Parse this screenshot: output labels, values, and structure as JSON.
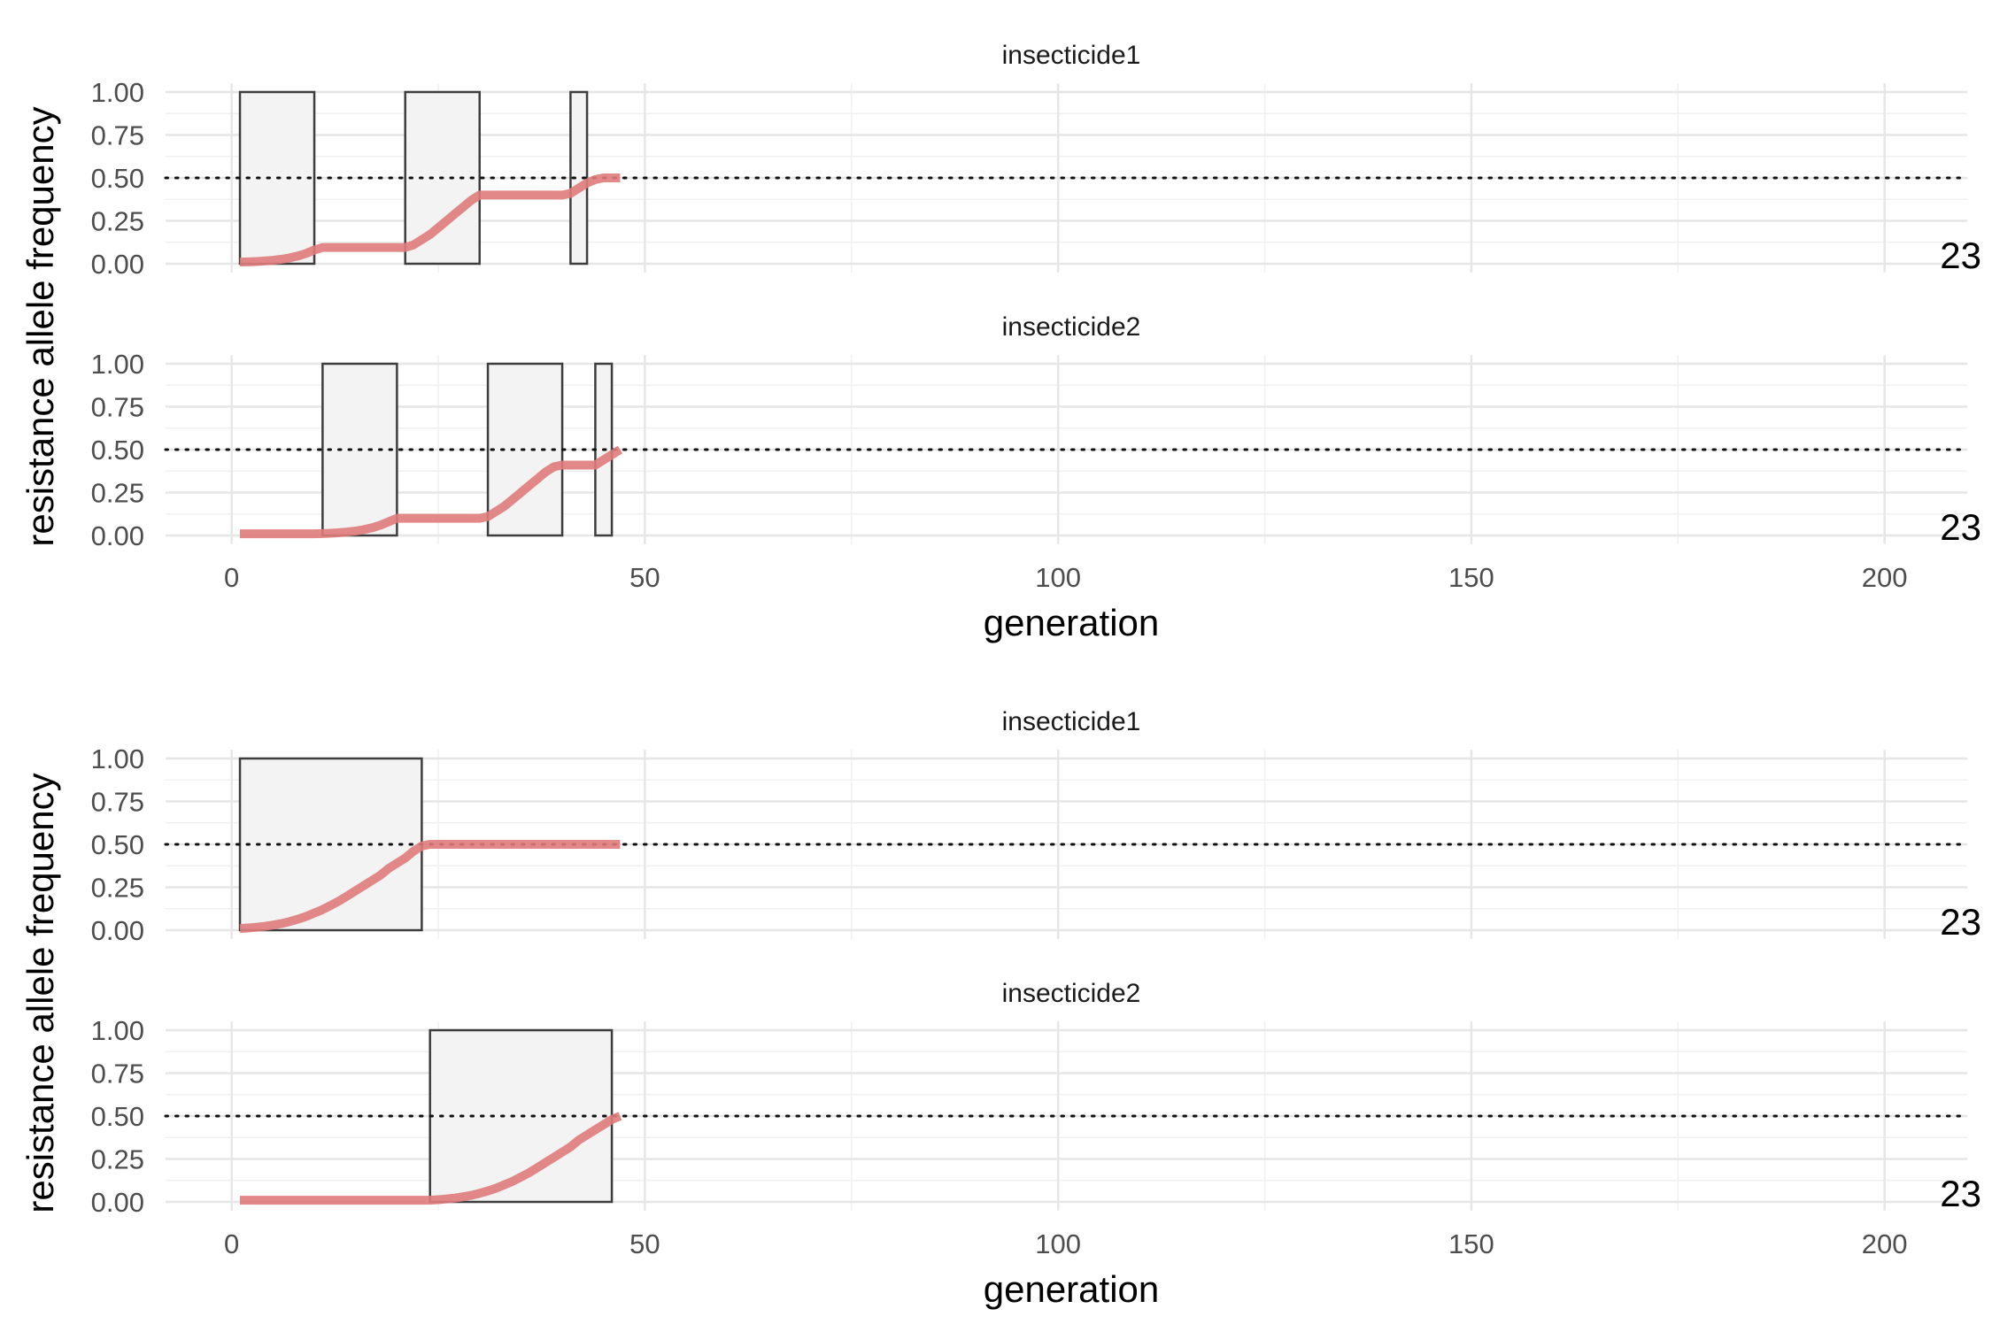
{
  "chart_data": [
    {
      "type": "line",
      "xlabel": "generation",
      "ylabel": "resistance allele frequency",
      "xlim": [
        -8,
        210
      ],
      "ylim": [
        0,
        1
      ],
      "x_ticks": [
        0,
        50,
        100,
        150,
        200
      ],
      "x_tick_labels": [
        "0",
        "50",
        "100",
        "150",
        "200"
      ],
      "y_ticks": [
        0,
        0.25,
        0.5,
        0.75,
        1
      ],
      "y_tick_labels": [
        "0.00",
        "0.25",
        "0.50",
        "0.75",
        "1.00"
      ],
      "threshold": 0.5,
      "grid": true,
      "line_color": "#e07b7b",
      "panels": [
        {
          "title": "insecticide1",
          "corner_label": "23",
          "deployment_intervals": [
            [
              1,
              10
            ],
            [
              21,
              30
            ],
            [
              41,
              43
            ]
          ],
          "series": {
            "x": [
              1,
              2,
              3,
              4,
              5,
              6,
              7,
              8,
              9,
              10,
              11,
              12,
              13,
              14,
              15,
              16,
              17,
              18,
              19,
              20,
              21,
              22,
              23,
              24,
              25,
              26,
              27,
              28,
              29,
              30,
              31,
              32,
              33,
              34,
              35,
              36,
              37,
              38,
              39,
              40,
              41,
              42,
              43,
              44,
              45,
              46,
              47
            ],
            "values": [
              0.01,
              0.011,
              0.013,
              0.016,
              0.02,
              0.026,
              0.034,
              0.045,
              0.06,
              0.08,
              0.095,
              0.095,
              0.095,
              0.095,
              0.095,
              0.095,
              0.095,
              0.095,
              0.095,
              0.095,
              0.095,
              0.11,
              0.14,
              0.17,
              0.21,
              0.25,
              0.29,
              0.33,
              0.37,
              0.4,
              0.4,
              0.4,
              0.4,
              0.4,
              0.4,
              0.4,
              0.4,
              0.4,
              0.4,
              0.4,
              0.41,
              0.44,
              0.47,
              0.49,
              0.5,
              0.5,
              0.5
            ]
          }
        },
        {
          "title": "insecticide2",
          "corner_label": "23",
          "deployment_intervals": [
            [
              11,
              20
            ],
            [
              31,
              40
            ],
            [
              44,
              46
            ]
          ],
          "series": {
            "x": [
              1,
              2,
              3,
              4,
              5,
              6,
              7,
              8,
              9,
              10,
              11,
              12,
              13,
              14,
              15,
              16,
              17,
              18,
              19,
              20,
              21,
              22,
              23,
              24,
              25,
              26,
              27,
              28,
              29,
              30,
              31,
              32,
              33,
              34,
              35,
              36,
              37,
              38,
              39,
              40,
              41,
              42,
              43,
              44,
              45,
              46,
              47
            ],
            "values": [
              0.01,
              0.01,
              0.01,
              0.01,
              0.01,
              0.01,
              0.01,
              0.01,
              0.01,
              0.01,
              0.011,
              0.013,
              0.016,
              0.02,
              0.026,
              0.034,
              0.045,
              0.06,
              0.08,
              0.1,
              0.1,
              0.1,
              0.1,
              0.1,
              0.1,
              0.1,
              0.1,
              0.1,
              0.1,
              0.1,
              0.11,
              0.14,
              0.17,
              0.21,
              0.25,
              0.29,
              0.33,
              0.37,
              0.4,
              0.41,
              0.41,
              0.41,
              0.41,
              0.41,
              0.44,
              0.47,
              0.5
            ]
          }
        }
      ]
    },
    {
      "type": "line",
      "xlabel": "generation",
      "ylabel": "resistance allele frequency",
      "xlim": [
        -8,
        210
      ],
      "ylim": [
        0,
        1
      ],
      "x_ticks": [
        0,
        50,
        100,
        150,
        200
      ],
      "x_tick_labels": [
        "0",
        "50",
        "100",
        "150",
        "200"
      ],
      "y_ticks": [
        0,
        0.25,
        0.5,
        0.75,
        1
      ],
      "y_tick_labels": [
        "0.00",
        "0.25",
        "0.50",
        "0.75",
        "1.00"
      ],
      "threshold": 0.5,
      "grid": true,
      "line_color": "#e07b7b",
      "panels": [
        {
          "title": "insecticide1",
          "corner_label": "23",
          "deployment_intervals": [
            [
              1,
              23
            ]
          ],
          "series": {
            "x": [
              1,
              2,
              3,
              4,
              5,
              6,
              7,
              8,
              9,
              10,
              11,
              12,
              13,
              14,
              15,
              16,
              17,
              18,
              19,
              20,
              21,
              22,
              23,
              24,
              25,
              26,
              27,
              28,
              29,
              30,
              31,
              32,
              33,
              34,
              35,
              36,
              37,
              38,
              39,
              40,
              41,
              42,
              43,
              44,
              45,
              46,
              47
            ],
            "values": [
              0.01,
              0.013,
              0.017,
              0.022,
              0.03,
              0.038,
              0.05,
              0.064,
              0.08,
              0.1,
              0.12,
              0.145,
              0.17,
              0.2,
              0.23,
              0.26,
              0.29,
              0.32,
              0.36,
              0.39,
              0.42,
              0.46,
              0.49,
              0.5,
              0.5,
              0.5,
              0.5,
              0.5,
              0.5,
              0.5,
              0.5,
              0.5,
              0.5,
              0.5,
              0.5,
              0.5,
              0.5,
              0.5,
              0.5,
              0.5,
              0.5,
              0.5,
              0.5,
              0.5,
              0.5,
              0.5,
              0.5
            ]
          }
        },
        {
          "title": "insecticide2",
          "corner_label": "23",
          "deployment_intervals": [
            [
              24,
              46
            ]
          ],
          "series": {
            "x": [
              1,
              2,
              3,
              4,
              5,
              6,
              7,
              8,
              9,
              10,
              11,
              12,
              13,
              14,
              15,
              16,
              17,
              18,
              19,
              20,
              21,
              22,
              23,
              24,
              25,
              26,
              27,
              28,
              29,
              30,
              31,
              32,
              33,
              34,
              35,
              36,
              37,
              38,
              39,
              40,
              41,
              42,
              43,
              44,
              45,
              46,
              47
            ],
            "values": [
              0.01,
              0.01,
              0.01,
              0.01,
              0.01,
              0.01,
              0.01,
              0.01,
              0.01,
              0.01,
              0.01,
              0.01,
              0.01,
              0.01,
              0.01,
              0.01,
              0.01,
              0.01,
              0.01,
              0.01,
              0.01,
              0.01,
              0.01,
              0.01,
              0.013,
              0.017,
              0.022,
              0.03,
              0.038,
              0.05,
              0.064,
              0.08,
              0.1,
              0.12,
              0.145,
              0.17,
              0.2,
              0.23,
              0.26,
              0.29,
              0.32,
              0.36,
              0.39,
              0.42,
              0.45,
              0.48,
              0.5
            ]
          }
        }
      ]
    }
  ]
}
